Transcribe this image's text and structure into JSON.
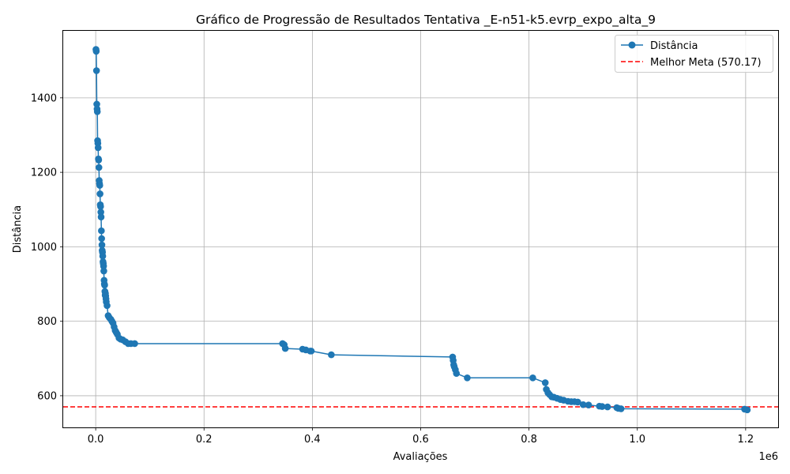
{
  "chart_data": {
    "type": "line",
    "title": "Gráfico de Progressão de Resultados Tentativa _E-n51-k5.evrp_expo_alta_9",
    "xlabel": "Avaliações",
    "ylabel": "Distância",
    "x_offset_label": "1e6",
    "xlim": [
      -0.06,
      1.26
    ],
    "ylim": [
      515,
      1580
    ],
    "x_ticks": [
      0.0,
      0.2,
      0.4,
      0.6,
      0.8,
      1.0,
      1.2
    ],
    "x_tick_labels": [
      "0.0",
      "0.2",
      "0.4",
      "0.6",
      "0.8",
      "1.0",
      "1.2"
    ],
    "y_ticks": [
      600,
      800,
      1000,
      1200,
      1400
    ],
    "y_tick_labels": [
      "600",
      "800",
      "1000",
      "1200",
      "1400"
    ],
    "grid": true,
    "legend_placement": "top-right",
    "series": [
      {
        "name": "Distância",
        "color": "#1f77b4",
        "marker": "circle",
        "x": [
          0.0005,
          0.001,
          0.0015,
          0.002,
          0.0025,
          0.003,
          0.0035,
          0.004,
          0.0045,
          0.005,
          0.0055,
          0.006,
          0.0065,
          0.007,
          0.0075,
          0.008,
          0.0085,
          0.009,
          0.0095,
          0.01,
          0.0105,
          0.011,
          0.0115,
          0.012,
          0.0125,
          0.013,
          0.0135,
          0.014,
          0.0145,
          0.015,
          0.0155,
          0.016,
          0.0165,
          0.017,
          0.0175,
          0.018,
          0.0185,
          0.019,
          0.0195,
          0.021,
          0.023,
          0.025,
          0.028,
          0.03,
          0.032,
          0.034,
          0.036,
          0.038,
          0.04,
          0.043,
          0.046,
          0.05,
          0.055,
          0.06,
          0.065,
          0.072,
          0.345,
          0.348,
          0.35,
          0.382,
          0.388,
          0.396,
          0.398,
          0.435,
          0.659,
          0.66,
          0.661,
          0.662,
          0.664,
          0.666,
          0.686,
          0.807,
          0.83,
          0.832,
          0.835,
          0.838,
          0.842,
          0.846,
          0.852,
          0.858,
          0.864,
          0.872,
          0.878,
          0.884,
          0.89,
          0.9,
          0.91,
          0.93,
          0.935,
          0.945,
          0.962,
          0.965,
          0.97,
          1.198,
          1.203
        ],
        "y": [
          1530,
          1525,
          1473,
          1383,
          1370,
          1363,
          1285,
          1278,
          1266,
          1236,
          1233,
          1213,
          1178,
          1170,
          1165,
          1142,
          1113,
          1108,
          1093,
          1080,
          1043,
          1022,
          1005,
          990,
          985,
          975,
          960,
          955,
          948,
          935,
          910,
          900,
          897,
          880,
          870,
          875,
          868,
          860,
          852,
          842,
          815,
          810,
          805,
          800,
          795,
          785,
          775,
          770,
          765,
          755,
          752,
          750,
          745,
          740,
          740,
          740,
          740,
          737,
          727,
          725,
          723,
          720,
          720,
          710,
          704,
          695,
          683,
          678,
          670,
          660,
          648,
          648,
          635,
          617,
          608,
          603,
          597,
          596,
          593,
          590,
          588,
          585,
          584,
          584,
          583,
          576,
          575,
          572,
          571,
          570,
          568,
          566,
          565,
          564,
          562
        ]
      }
    ],
    "reference_lines": [
      {
        "name": "Melhor Meta (570.17)",
        "y": 570.17,
        "color": "#ff0000",
        "style": "dashed"
      }
    ]
  }
}
